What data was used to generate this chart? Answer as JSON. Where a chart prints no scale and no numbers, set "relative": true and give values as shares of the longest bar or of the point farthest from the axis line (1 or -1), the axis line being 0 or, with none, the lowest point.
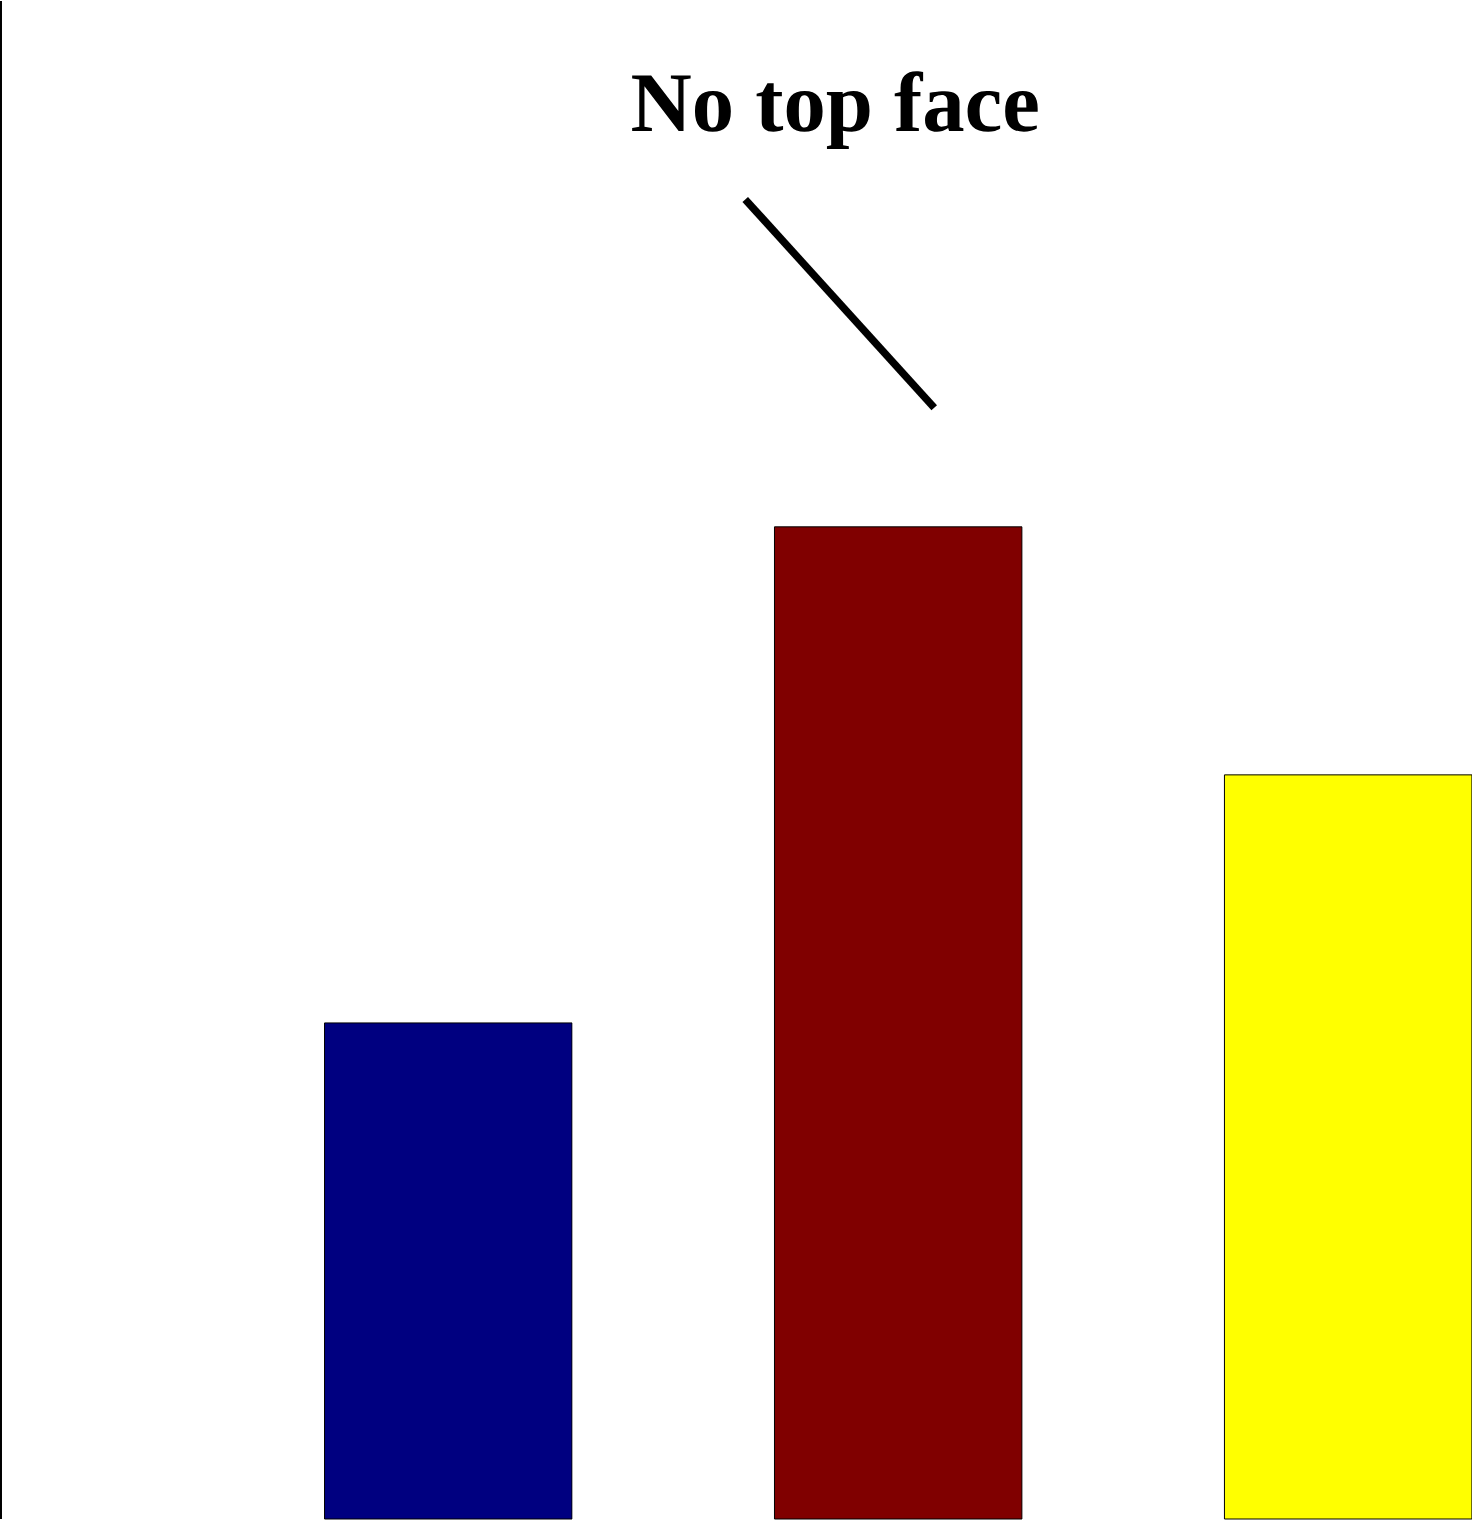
{
  "chart_data": {
    "type": "bar",
    "relative": true,
    "categories": [
      null,
      null,
      null
    ],
    "values": [
      0.5,
      1,
      0.75
    ],
    "colors": [
      "#000080",
      "#800000",
      "#ffff00"
    ],
    "annotations": [
      "No top face"
    ]
  }
}
